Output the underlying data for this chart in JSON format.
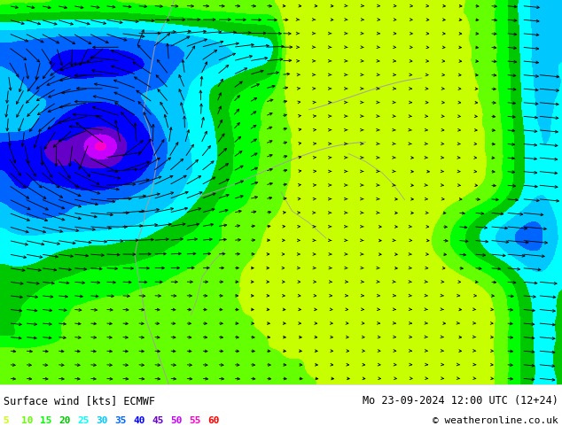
{
  "title_left": "Surface wind [kts] ECMWF",
  "title_right": "Mo 23-09-2024 12:00 UTC (12+24)",
  "copyright": "© weatheronline.co.uk",
  "legend_values": [
    5,
    10,
    15,
    20,
    25,
    30,
    35,
    40,
    45,
    50,
    55,
    60
  ],
  "legend_colors": [
    "#c8ff00",
    "#64ff00",
    "#00ff00",
    "#00c800",
    "#00ffff",
    "#00c8ff",
    "#0064ff",
    "#0000ff",
    "#6400c8",
    "#c800ff",
    "#ff00c8",
    "#ff0000"
  ],
  "bg_color": "#ffffff",
  "figure_width": 6.34,
  "figure_height": 4.9,
  "dpi": 100,
  "map_bounds": [
    0,
    0.115,
    1.0,
    0.885
  ],
  "info_bounds": [
    0,
    0,
    1.0,
    0.115
  ]
}
